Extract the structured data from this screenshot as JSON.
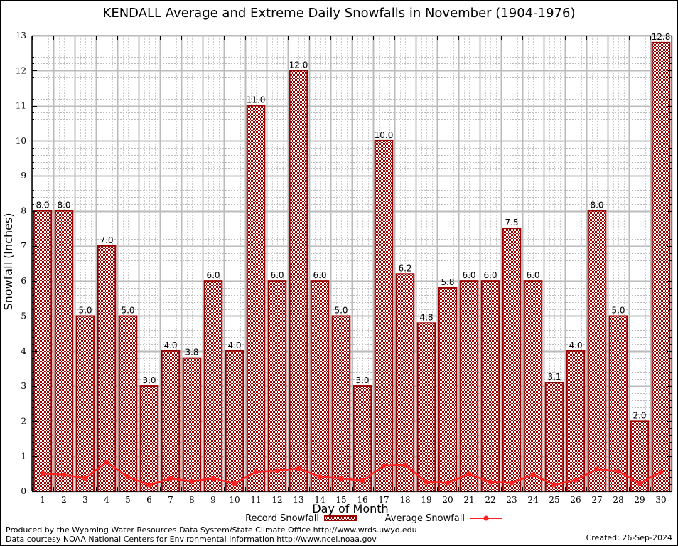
{
  "chart_data": {
    "type": "bar",
    "title": "KENDALL Average and Extreme Daily Snowfalls in November (1904-1976)",
    "xlabel": "Day of Month",
    "ylabel": "Snowfall (Inches)",
    "ylim": [
      0,
      13
    ],
    "yticks": [
      0,
      1,
      2,
      3,
      4,
      5,
      6,
      7,
      8,
      9,
      10,
      11,
      12,
      13
    ],
    "grid": true,
    "legend_position": "bottom-center",
    "categories": [
      "1",
      "2",
      "3",
      "4",
      "5",
      "6",
      "7",
      "8",
      "9",
      "10",
      "11",
      "12",
      "13",
      "14",
      "15",
      "16",
      "17",
      "18",
      "19",
      "20",
      "21",
      "22",
      "23",
      "24",
      "25",
      "26",
      "27",
      "28",
      "29",
      "30"
    ],
    "series": [
      {
        "name": "Record Snowfall",
        "kind": "bar",
        "color": "#990000",
        "values": [
          8.0,
          8.0,
          5.0,
          7.0,
          5.0,
          3.0,
          4.0,
          3.8,
          6.0,
          4.0,
          11.0,
          6.0,
          12.0,
          6.0,
          5.0,
          3.0,
          10.0,
          6.2,
          4.8,
          5.8,
          6.0,
          6.0,
          7.5,
          6.0,
          3.1,
          4.0,
          8.0,
          5.0,
          2.0,
          12.8
        ],
        "labels": [
          "8.0",
          "8.0",
          "5.0",
          "7.0",
          "5.0",
          "3.0",
          "4.0",
          "3.8",
          "6.0",
          "4.0",
          "11.0",
          "6.0",
          "12.0",
          "6.0",
          "5.0",
          "3.0",
          "10.0",
          "6.2",
          "4.8",
          "5.8",
          "6.0",
          "6.0",
          "7.5",
          "6.0",
          "3.1",
          "4.0",
          "8.0",
          "5.0",
          "2.0",
          "12.8"
        ]
      },
      {
        "name": "Average Snowfall",
        "kind": "line",
        "color": "#ff2020",
        "values": [
          0.51,
          0.47,
          0.37,
          0.83,
          0.41,
          0.18,
          0.37,
          0.28,
          0.37,
          0.22,
          0.55,
          0.59,
          0.65,
          0.41,
          0.37,
          0.3,
          0.73,
          0.75,
          0.26,
          0.24,
          0.49,
          0.26,
          0.24,
          0.47,
          0.18,
          0.32,
          0.63,
          0.57,
          0.22,
          0.55
        ]
      }
    ]
  },
  "footer": {
    "credit_line1": "Produced by the Wyoming Water Resources Data System/State Climate Office http://www.wrds.uwyo.edu",
    "credit_line2": "Data courtesy NOAA National Centers for Environmental Information http://www.ncei.noaa.gov",
    "created": "Created: 26-Sep-2024"
  }
}
